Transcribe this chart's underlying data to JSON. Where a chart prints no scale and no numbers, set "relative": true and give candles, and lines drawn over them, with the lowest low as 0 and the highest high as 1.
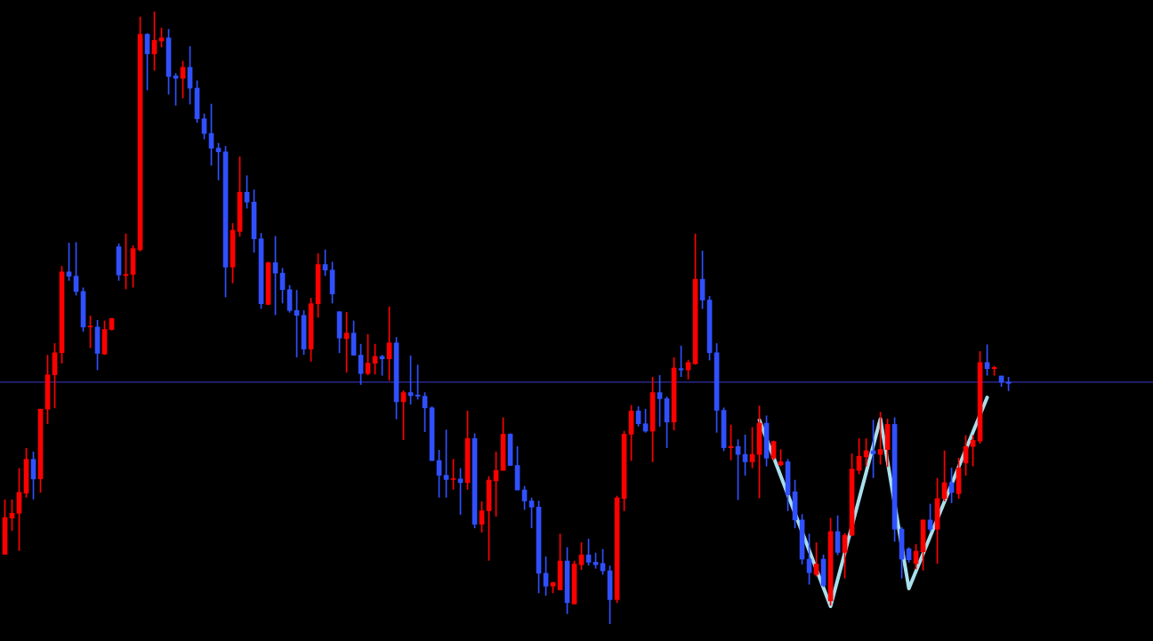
{
  "chart_data": {
    "type": "candlestick",
    "relative": true,
    "categories": [
      null,
      null,
      null,
      null,
      null,
      null,
      null,
      null,
      null,
      null,
      null,
      null,
      null,
      null,
      null,
      null,
      null,
      null,
      null,
      null,
      null,
      null,
      null,
      null,
      null,
      null,
      null,
      null,
      null,
      null,
      null,
      null,
      null,
      null,
      null,
      null,
      null,
      null,
      null,
      null,
      null,
      null,
      null,
      null,
      null,
      null,
      null,
      null,
      null,
      null,
      null,
      null,
      null,
      null,
      null,
      null,
      null,
      null,
      null,
      null,
      null,
      null,
      null,
      null,
      null,
      null,
      null,
      null,
      null,
      null,
      null,
      null,
      null,
      null,
      null,
      null,
      null,
      null,
      null,
      null,
      null,
      null,
      null,
      null,
      null,
      null,
      null,
      null,
      null,
      null,
      null,
      null,
      null,
      null,
      null,
      null,
      null,
      null,
      null,
      null,
      null,
      null,
      null,
      null,
      null,
      null,
      null,
      null,
      null,
      null,
      null,
      null,
      null,
      null,
      null,
      null,
      null,
      null,
      null,
      null,
      null,
      null,
      null,
      null,
      null,
      null,
      null,
      null,
      null,
      null,
      null,
      null,
      null,
      null,
      null,
      null,
      null,
      null,
      null,
      null,
      null,
      null
    ],
    "ohlc": [
      [
        0.114,
        0.203,
        0.114,
        0.174
      ],
      [
        0.173,
        0.203,
        0.153,
        0.181
      ],
      [
        0.181,
        0.254,
        0.12,
        0.215
      ],
      [
        0.214,
        0.287,
        0.207,
        0.269
      ],
      [
        0.269,
        0.281,
        0.204,
        0.237
      ],
      [
        0.237,
        0.351,
        0.215,
        0.351
      ],
      [
        0.351,
        0.439,
        0.327,
        0.407
      ],
      [
        0.407,
        0.458,
        0.353,
        0.443
      ],
      [
        0.443,
        0.584,
        0.426,
        0.575
      ],
      [
        0.575,
        0.622,
        0.561,
        0.568
      ],
      [
        0.568,
        0.623,
        0.537,
        0.543
      ],
      [
        0.543,
        0.549,
        0.478,
        0.485
      ],
      [
        0.485,
        0.503,
        0.451,
        0.486
      ],
      [
        0.485,
        0.496,
        0.415,
        0.442
      ],
      [
        0.441,
        0.495,
        0.44,
        0.481
      ],
      [
        0.481,
        0.499,
        0.48,
        0.499
      ],
      [
        0.616,
        0.621,
        0.561,
        0.57
      ],
      [
        0.569,
        0.637,
        0.547,
        0.571
      ],
      [
        0.571,
        0.618,
        0.55,
        0.613
      ],
      [
        0.611,
        0.991,
        0.609,
        0.963
      ],
      [
        0.963,
        0.964,
        0.872,
        0.931
      ],
      [
        0.931,
        1.0,
        0.904,
        0.953
      ],
      [
        0.952,
        0.973,
        0.942,
        0.957
      ],
      [
        0.957,
        0.971,
        0.865,
        0.894
      ],
      [
        0.895,
        0.899,
        0.847,
        0.891
      ],
      [
        0.891,
        0.919,
        0.859,
        0.909
      ],
      [
        0.909,
        0.943,
        0.849,
        0.875
      ],
      [
        0.875,
        0.887,
        0.819,
        0.825
      ],
      [
        0.825,
        0.833,
        0.792,
        0.801
      ],
      [
        0.801,
        0.849,
        0.749,
        0.777
      ],
      [
        0.777,
        0.785,
        0.725,
        0.771
      ],
      [
        0.771,
        0.78,
        0.534,
        0.583
      ],
      [
        0.583,
        0.654,
        0.557,
        0.643
      ],
      [
        0.641,
        0.763,
        0.633,
        0.705
      ],
      [
        0.705,
        0.732,
        0.679,
        0.689
      ],
      [
        0.689,
        0.709,
        0.607,
        0.629
      ],
      [
        0.629,
        0.638,
        0.515,
        0.523
      ],
      [
        0.522,
        0.591,
        0.521,
        0.59
      ],
      [
        0.59,
        0.633,
        0.505,
        0.573
      ],
      [
        0.573,
        0.581,
        0.524,
        0.546
      ],
      [
        0.546,
        0.553,
        0.509,
        0.512
      ],
      [
        0.512,
        0.545,
        0.436,
        0.504
      ],
      [
        0.504,
        0.512,
        0.44,
        0.449
      ],
      [
        0.449,
        0.532,
        0.429,
        0.523
      ],
      [
        0.523,
        0.605,
        0.501,
        0.587
      ],
      [
        0.587,
        0.611,
        0.569,
        0.578
      ],
      [
        0.578,
        0.591,
        0.524,
        0.539
      ],
      [
        0.51,
        0.51,
        0.443,
        0.467
      ],
      [
        0.466,
        0.509,
        0.411,
        0.475
      ],
      [
        0.475,
        0.495,
        0.439,
        0.439
      ],
      [
        0.439,
        0.457,
        0.391,
        0.409
      ],
      [
        0.409,
        0.473,
        0.407,
        0.426
      ],
      [
        0.426,
        0.457,
        0.408,
        0.437
      ],
      [
        0.437,
        0.439,
        0.406,
        0.433
      ],
      [
        0.433,
        0.518,
        0.398,
        0.459
      ],
      [
        0.459,
        0.468,
        0.335,
        0.363
      ],
      [
        0.363,
        0.381,
        0.301,
        0.378
      ],
      [
        0.378,
        0.438,
        0.359,
        0.373
      ],
      [
        0.374,
        0.423,
        0.367,
        0.372
      ],
      [
        0.372,
        0.378,
        0.314,
        0.353
      ],
      [
        0.353,
        0.355,
        0.267,
        0.267
      ],
      [
        0.267,
        0.284,
        0.207,
        0.243
      ],
      [
        0.243,
        0.317,
        0.207,
        0.236
      ],
      [
        0.236,
        0.269,
        0.22,
        0.237
      ],
      [
        0.237,
        0.254,
        0.179,
        0.231
      ],
      [
        0.231,
        0.348,
        0.22,
        0.303
      ],
      [
        0.303,
        0.311,
        0.157,
        0.163
      ],
      [
        0.163,
        0.2,
        0.15,
        0.185
      ],
      [
        0.185,
        0.241,
        0.104,
        0.235
      ],
      [
        0.234,
        0.281,
        0.176,
        0.251
      ],
      [
        0.251,
        0.337,
        0.251,
        0.31
      ],
      [
        0.31,
        0.311,
        0.259,
        0.259
      ],
      [
        0.259,
        0.29,
        0.219,
        0.219
      ],
      [
        0.219,
        0.225,
        0.187,
        0.201
      ],
      [
        0.201,
        0.206,
        0.157,
        0.191
      ],
      [
        0.191,
        0.201,
        0.051,
        0.083
      ],
      [
        0.083,
        0.11,
        0.047,
        0.062
      ],
      [
        0.062,
        0.068,
        0.051,
        0.068
      ],
      [
        0.056,
        0.147,
        0.056,
        0.103
      ],
      [
        0.103,
        0.125,
        0.017,
        0.035
      ],
      [
        0.033,
        0.103,
        0.033,
        0.098
      ],
      [
        0.097,
        0.133,
        0.089,
        0.113
      ],
      [
        0.113,
        0.139,
        0.096,
        0.101
      ],
      [
        0.101,
        0.116,
        0.091,
        0.097
      ],
      [
        0.099,
        0.122,
        0.081,
        0.087
      ],
      [
        0.087,
        0.095,
        0.0,
        0.04
      ],
      [
        0.04,
        0.209,
        0.035,
        0.206
      ],
      [
        0.205,
        0.315,
        0.185,
        0.31
      ],
      [
        0.31,
        0.357,
        0.267,
        0.348
      ],
      [
        0.348,
        0.355,
        0.323,
        0.327
      ],
      [
        0.327,
        0.351,
        0.313,
        0.315
      ],
      [
        0.315,
        0.403,
        0.265,
        0.378
      ],
      [
        0.378,
        0.406,
        0.323,
        0.368
      ],
      [
        0.368,
        0.371,
        0.288,
        0.33
      ],
      [
        0.33,
        0.435,
        0.317,
        0.418
      ],
      [
        0.417,
        0.454,
        0.404,
        0.415
      ],
      [
        0.415,
        0.431,
        0.4,
        0.427
      ],
      [
        0.425,
        0.637,
        0.424,
        0.563
      ],
      [
        0.563,
        0.609,
        0.515,
        0.529
      ],
      [
        0.529,
        0.535,
        0.431,
        0.443
      ],
      [
        0.443,
        0.458,
        0.313,
        0.349
      ],
      [
        0.349,
        0.353,
        0.283,
        0.288
      ],
      [
        0.288,
        0.325,
        0.268,
        0.29
      ],
      [
        0.29,
        0.301,
        0.203,
        0.277
      ],
      [
        0.277,
        0.309,
        0.243,
        0.265
      ],
      [
        0.265,
        0.321,
        0.255,
        0.277
      ],
      [
        0.277,
        0.356,
        0.206,
        0.328
      ],
      [
        0.328,
        0.34,
        0.258,
        0.271
      ],
      [
        0.271,
        0.299,
        0.268,
        0.298
      ],
      [
        0.26,
        0.285,
        0.258,
        0.265
      ],
      [
        0.265,
        0.269,
        0.185,
        0.211
      ],
      [
        0.216,
        0.235,
        0.157,
        0.17
      ],
      [
        0.17,
        0.179,
        0.098,
        0.106
      ],
      [
        0.106,
        0.147,
        0.065,
        0.084
      ],
      [
        0.081,
        0.133,
        0.078,
        0.098
      ],
      [
        0.106,
        0.113,
        0.061,
        0.063
      ],
      [
        0.038,
        0.173,
        0.031,
        0.151
      ],
      [
        0.151,
        0.177,
        0.113,
        0.117
      ],
      [
        0.117,
        0.148,
        0.075,
        0.145
      ],
      [
        0.145,
        0.278,
        0.145,
        0.253
      ],
      [
        0.251,
        0.303,
        0.245,
        0.274
      ],
      [
        0.273,
        0.303,
        0.258,
        0.283
      ],
      [
        0.283,
        0.333,
        0.239,
        0.278
      ],
      [
        0.277,
        0.346,
        0.261,
        0.285
      ],
      [
        0.285,
        0.335,
        0.257,
        0.326
      ],
      [
        0.326,
        0.337,
        0.135,
        0.155
      ],
      [
        0.155,
        0.158,
        0.075,
        0.106
      ],
      [
        0.123,
        0.125,
        0.101,
        0.105
      ],
      [
        0.099,
        0.13,
        0.09,
        0.119
      ],
      [
        0.118,
        0.17,
        0.088,
        0.17
      ],
      [
        0.17,
        0.196,
        0.151,
        0.155
      ],
      [
        0.155,
        0.238,
        0.099,
        0.205
      ],
      [
        0.205,
        0.283,
        0.201,
        0.231
      ],
      [
        0.231,
        0.255,
        0.198,
        0.215
      ],
      [
        0.213,
        0.271,
        0.205,
        0.255
      ],
      [
        0.263,
        0.308,
        0.243,
        0.29
      ],
      [
        0.29,
        0.308,
        0.258,
        0.3
      ],
      [
        0.299,
        0.445,
        0.295,
        0.427
      ],
      [
        0.427,
        0.456,
        0.406,
        0.417
      ],
      [
        0.417,
        0.421,
        0.406,
        0.419
      ],
      [
        0.405,
        0.405,
        0.388,
        0.395
      ],
      [
        0.395,
        0.403,
        0.381,
        0.393
      ]
    ],
    "colors": [
      "#ff0000",
      "#ff0000",
      "#ff0000",
      "#ff0000",
      "#3050ff",
      "#ff0000",
      "#ff0000",
      "#ff0000",
      "#ff0000",
      "#3050ff",
      "#3050ff",
      "#3050ff",
      "#ff0000",
      "#3050ff",
      "#ff0000",
      "#ff0000",
      "#3050ff",
      "#ff0000",
      "#ff0000",
      "#ff0000",
      "#3050ff",
      "#ff0000",
      "#ff0000",
      "#3050ff",
      "#3050ff",
      "#ff0000",
      "#3050ff",
      "#3050ff",
      "#3050ff",
      "#3050ff",
      "#3050ff",
      "#3050ff",
      "#ff0000",
      "#ff0000",
      "#3050ff",
      "#3050ff",
      "#3050ff",
      "#ff0000",
      "#3050ff",
      "#3050ff",
      "#3050ff",
      "#3050ff",
      "#3050ff",
      "#ff0000",
      "#ff0000",
      "#3050ff",
      "#3050ff",
      "#3050ff",
      "#ff0000",
      "#3050ff",
      "#3050ff",
      "#ff0000",
      "#ff0000",
      "#3050ff",
      "#ff0000",
      "#3050ff",
      "#ff0000",
      "#3050ff",
      "#3050ff",
      "#3050ff",
      "#3050ff",
      "#3050ff",
      "#3050ff",
      "#ff0000",
      "#3050ff",
      "#ff0000",
      "#3050ff",
      "#ff0000",
      "#ff0000",
      "#ff0000",
      "#ff0000",
      "#3050ff",
      "#3050ff",
      "#3050ff",
      "#3050ff",
      "#3050ff",
      "#3050ff",
      "#ff0000",
      "#ff0000",
      "#3050ff",
      "#ff0000",
      "#ff0000",
      "#3050ff",
      "#3050ff",
      "#3050ff",
      "#3050ff",
      "#ff0000",
      "#ff0000",
      "#ff0000",
      "#3050ff",
      "#3050ff",
      "#ff0000",
      "#3050ff",
      "#3050ff",
      "#ff0000",
      "#3050ff",
      "#ff0000",
      "#ff0000",
      "#3050ff",
      "#3050ff",
      "#3050ff",
      "#3050ff",
      "#ff0000",
      "#3050ff",
      "#3050ff",
      "#ff0000",
      "#ff0000",
      "#3050ff",
      "#ff0000",
      "#ff0000",
      "#3050ff",
      "#3050ff",
      "#3050ff",
      "#3050ff",
      "#ff0000",
      "#3050ff",
      "#ff0000",
      "#3050ff",
      "#ff0000",
      "#ff0000",
      "#ff0000",
      "#ff0000",
      "#3050ff",
      "#ff0000",
      "#ff0000",
      "#3050ff",
      "#3050ff",
      "#3050ff",
      "#ff0000",
      "#ff0000",
      "#3050ff",
      "#ff0000",
      "#ff0000",
      "#3050ff",
      "#ff0000",
      "#ff0000",
      "#ff0000",
      "#ff0000",
      "#3050ff",
      "#ff0000",
      "#3050ff",
      "#3050ff"
    ],
    "series": [
      {
        "type": "line",
        "color": "#a8e0ec",
        "values": [
          null,
          null,
          null,
          null,
          null,
          null,
          null,
          null,
          null,
          null,
          null,
          null,
          null,
          null,
          null,
          null,
          null,
          null,
          null,
          null,
          null,
          null,
          null,
          null,
          null,
          null,
          null,
          null,
          null,
          null,
          null,
          null,
          null,
          null,
          null,
          null,
          null,
          null,
          null,
          null,
          null,
          null,
          null,
          null,
          null,
          null,
          null,
          null,
          null,
          null,
          null,
          null,
          null,
          null,
          null,
          null,
          null,
          null,
          null,
          null,
          null,
          null,
          null,
          null,
          null,
          null,
          null,
          null,
          null,
          null,
          null,
          null,
          null,
          null,
          null,
          null,
          null,
          null,
          null,
          null,
          null,
          null,
          null,
          null,
          null,
          null,
          null,
          null,
          null,
          null,
          null,
          null,
          null,
          null,
          null,
          null,
          null,
          null,
          null,
          null,
          null,
          null,
          null,
          null,
          null,
          null,
          0.333,
          null,
          null,
          null,
          null,
          null,
          null,
          null,
          null,
          null,
          0.029,
          null,
          null,
          null,
          null,
          null,
          null,
          0.335,
          null,
          null,
          null,
          0.058,
          null,
          null,
          null,
          null,
          null,
          null,
          null,
          null,
          null,
          null,
          0.37,
          null,
          null,
          null
        ]
      }
    ],
    "ref_lines": [
      {
        "axis": "y",
        "value": 0.395,
        "color": "#3c3cc8"
      }
    ]
  }
}
